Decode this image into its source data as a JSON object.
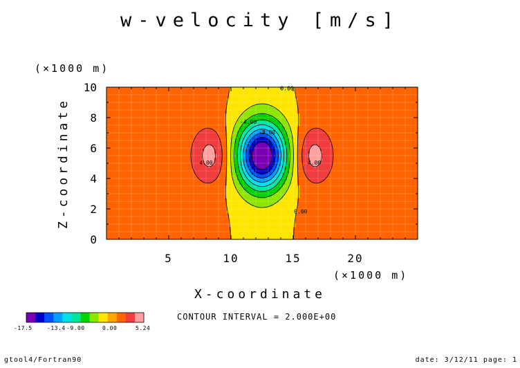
{
  "chart_data": {
    "type": "heatmap",
    "title": "w-velocity [m/s]",
    "xlabel": "X-coordinate",
    "ylabel": "Z-coordinate",
    "x_unit": "(×1000 m)",
    "y_unit": "(×1000 m)",
    "xlim": [
      0,
      25
    ],
    "ylim": [
      0,
      10
    ],
    "x_ticks": [
      5,
      10,
      15,
      20
    ],
    "y_ticks": [
      0,
      2,
      4,
      6,
      8,
      10
    ],
    "contour_interval_text": "CONTOUR INTERVAL = 2.000E+00",
    "contour_labels": [
      {
        "text": "0.00",
        "x": 14.5,
        "z": 9.8
      },
      {
        "text": "0.00",
        "x": 15.6,
        "z": 1.7
      },
      {
        "text": "4.00",
        "x": 8.0,
        "z": 4.9
      },
      {
        "text": "4.00",
        "x": 16.7,
        "z": 4.9
      },
      {
        "text": "-4.00",
        "x": 11.4,
        "z": 7.6
      },
      {
        "text": "-8.00",
        "x": 12.9,
        "z": 6.9
      }
    ],
    "colorbar": {
      "colors": [
        "#7a00b4",
        "#0000c8",
        "#0050ff",
        "#00a0ff",
        "#00e0e6",
        "#00e6a0",
        "#00d200",
        "#8ce600",
        "#ffe600",
        "#ffa500",
        "#ff6400",
        "#f03c3c",
        "#ffa0a0"
      ],
      "labels": [
        "-17.5",
        "-13.4",
        "-9.00",
        "0.00",
        "5.24"
      ]
    },
    "field": {
      "updraft_centers": [
        [
          8.4,
          5.5
        ],
        [
          16.6,
          5.5
        ]
      ],
      "updraft_max": 5.24,
      "downdraft_center": [
        12.5,
        5.5
      ],
      "downdraft_min": -17.5,
      "background_level": 1.0
    }
  },
  "footer": {
    "left": "gtool4/Fortran90",
    "right": "date: 3/12/11 page: 1"
  }
}
